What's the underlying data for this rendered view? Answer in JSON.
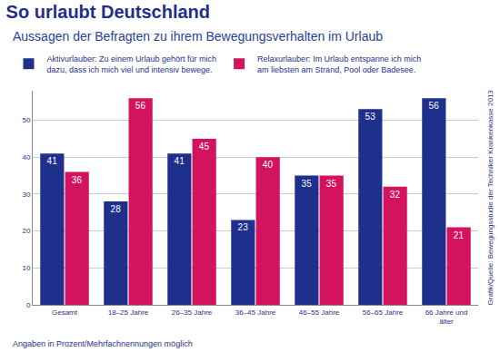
{
  "chart_data": {
    "type": "bar",
    "title": "So urlaubt Deutschland",
    "subtitle": "Aussagen der Befragten zu ihrem Bewegungsverhalten im Urlaub",
    "categories": [
      "Gesamt",
      "18–25 Jahre",
      "26–35 Jahre",
      "36–45 Jahre",
      "46–55 Jahre",
      "56–65 Jahre",
      "66 Jahre und älter"
    ],
    "series": [
      {
        "name": "Aktivurlauber: Zu einem Urlaub gehört für mich dazu, dass ich mich viel und intensiv bewege.",
        "color": "#1f2f8c",
        "values": [
          41,
          28,
          41,
          23,
          35,
          53,
          56
        ]
      },
      {
        "name": "Relaxurlauber: Im Urlaub entspanne ich mich am liebsten am Strand, Pool oder Badesee.",
        "color": "#d3135e",
        "values": [
          36,
          56,
          45,
          40,
          35,
          32,
          21
        ]
      }
    ],
    "ylim": [
      0,
      58
    ],
    "yticks": [
      0,
      10,
      20,
      30,
      40,
      50
    ],
    "grid": true,
    "legend": "top",
    "data_labels": true,
    "annotations": [
      "Angaben in Prozent/Mehrfachnennungen möglich",
      "Grafik/Quelle: Bewegungsstudie der Techniker Krankenkasse 2013"
    ]
  }
}
